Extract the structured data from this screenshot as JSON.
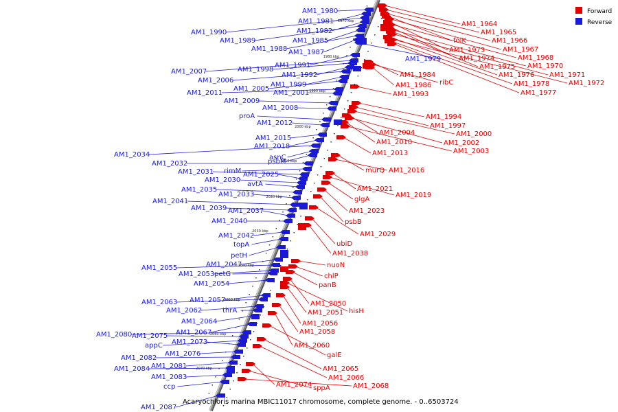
{
  "caption": "Acaryochloris marina MBIC11017 chromosome, complete genome. - 0..6503724",
  "legend": {
    "forward": "Forward",
    "reverse": "Reverse",
    "forward_color": "#e00000",
    "reverse_color": "#1a1ad6"
  },
  "kbp_ticks": [
    "1970 kbp",
    "1980 kbp",
    "1990 kbp",
    "2000 kbp",
    "2010 kbp",
    "2020 kbp",
    "2030 kbp",
    "2040 kbp",
    "2050 kbp",
    "2060 kbp",
    "2070 kbp"
  ],
  "forward_labels": [
    "AM1_1964",
    "AM1_1965",
    "AM1_1966",
    "folK",
    "AM1_1967",
    "AM1_1973",
    "AM1_1968",
    "AM1_1974",
    "AM1_1970",
    "AM1_1975",
    "AM1_1971",
    "AM1_1976",
    "AM1_1972",
    "AM1_1978",
    "AM1_1977",
    "AM1_1984",
    "ribC",
    "AM1_1986",
    "AM1_1993",
    "AM1_1994",
    "AM1_1997",
    "AM1_2000",
    "AM1_2004",
    "AM1_2002",
    "AM1_2010",
    "AM1_2003",
    "AM1_2013",
    "murQ",
    "AM1_2016",
    "AM1_2021",
    "AM1_2019",
    "glgA",
    "AM1_2023",
    "psbB",
    "AM1_2029",
    "ubiD",
    "AM1_2038",
    "nuoN",
    "chlP",
    "panB",
    "AM1_2050",
    "hisH",
    "AM1_2051",
    "AM1_2056",
    "AM1_2058",
    "AM1_2060",
    "galE",
    "AM1_2065",
    "AM1_2066",
    "AM1_2074",
    "sppA",
    "AM1_2068"
  ],
  "reverse_labels": [
    "AM1_1980",
    "AM1_1981",
    "AM1_1990",
    "AM1_1982",
    "AM1_1989",
    "AM1_1985",
    "AM1_1988",
    "AM1_1987",
    "AM1_1979",
    "AM1_1991",
    "AM1_2007",
    "AM1_1998",
    "AM1_1992",
    "AM1_2006",
    "AM1_1999",
    "AM1_2005",
    "AM1_2011",
    "AM1_2001",
    "AM1_2009",
    "AM1_2008",
    "proA",
    "AM1_2012",
    "AM1_2015",
    "AM1_2018",
    "AM1_2034",
    "psbM",
    "asnC",
    "AM1_2032",
    "rimM",
    "AM1_2031",
    "AM1_2025",
    "AM1_2030",
    "avtA",
    "AM1_2035",
    "AM1_2033",
    "AM1_2041",
    "AM1_2039",
    "AM1_2037",
    "AM1_2040",
    "AM1_2042",
    "topA",
    "petH",
    "AM1_2047",
    "AM1_2055",
    "AM1_2053",
    "petG",
    "AM1_2054",
    "AM1_2057",
    "AM1_2063",
    "AM1_2062",
    "thrA",
    "AM1_2064",
    "AM1_2067",
    "AM1_2080",
    "AM1_2075",
    "appC",
    "AM1_2073",
    "AM1_2076",
    "AM1_2082",
    "AM1_2081",
    "AM1_2084",
    "AM1_2083",
    "ccp",
    "AM1_2087"
  ]
}
